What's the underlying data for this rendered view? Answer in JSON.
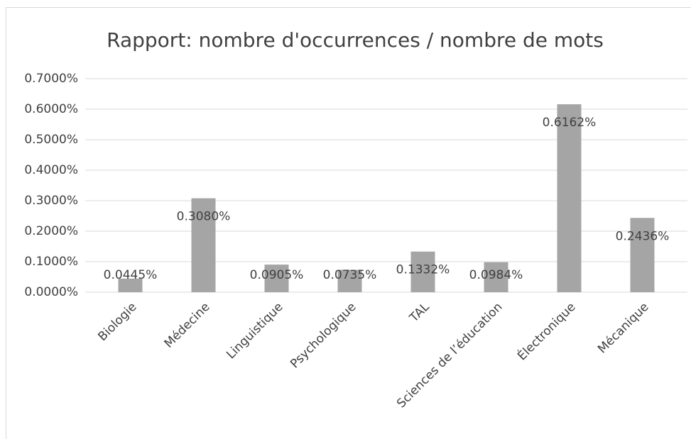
{
  "chart_data": {
    "type": "bar",
    "title": "Rapport: nombre d'occurrences / nombre de mots",
    "categories": [
      "Biologie",
      "Médecine",
      "Linguistique",
      "Psychologique",
      "TAL",
      "Sciences de l’éducation",
      "Électronique",
      "Mécanique"
    ],
    "values": [
      0.0445,
      0.308,
      0.0905,
      0.0735,
      0.1332,
      0.0984,
      0.6162,
      0.2436
    ],
    "value_labels": [
      "0.0445%",
      "0.3080%",
      "0.0905%",
      "0.0735%",
      "0.1332%",
      "0.0984%",
      "0.6162%",
      "0.2436%"
    ],
    "color": "#a5a5a5",
    "ylim": [
      0,
      0.7
    ],
    "yticks": [
      {
        "value": 0,
        "label": "0.0000%"
      },
      {
        "value": 0.1,
        "label": "0.1000%"
      },
      {
        "value": 0.2,
        "label": "0.2000%"
      },
      {
        "value": 0.3,
        "label": "0.3000%"
      },
      {
        "value": 0.4,
        "label": "0.4000%"
      },
      {
        "value": 0.5,
        "label": "0.5000%"
      },
      {
        "value": 0.6,
        "label": "0.6000%"
      },
      {
        "value": 0.7,
        "label": "0.7000%"
      }
    ],
    "grid": true
  }
}
